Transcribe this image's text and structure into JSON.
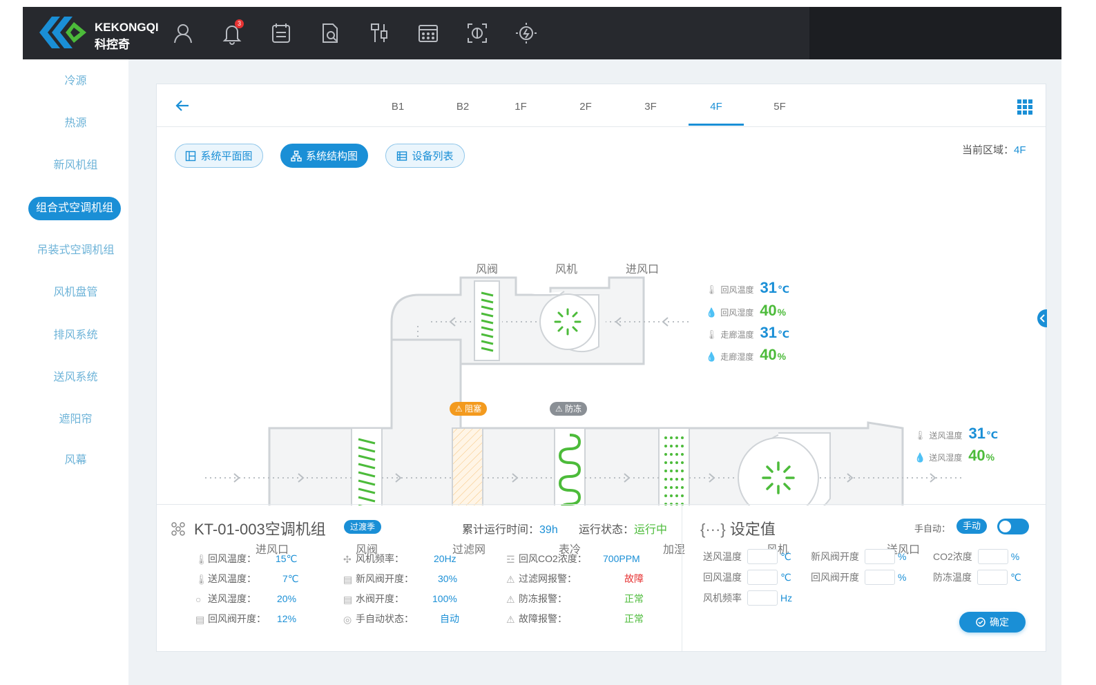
{
  "header": {
    "brand_en": "KEKONGQI",
    "brand_cn": "科控奇",
    "notification_count": "3",
    "icons": [
      "user-icon",
      "bell-icon",
      "calendar-icon",
      "document-search-icon",
      "tools-icon",
      "schedule-icon",
      "scan-icon",
      "energy-icon"
    ]
  },
  "sidebar": {
    "items": [
      "冷源",
      "热源",
      "新风机组",
      "组合式空调机组",
      "吊装式空调机组",
      "风机盘管",
      "排风系统",
      "送风系统",
      "遮阳帘",
      "风幕"
    ],
    "active_index": 3
  },
  "floors": {
    "tabs": [
      "B1",
      "B2",
      "1F",
      "2F",
      "3F",
      "4F",
      "5F"
    ],
    "active": "4F"
  },
  "views": {
    "plan": "系统平面图",
    "structure": "系统结构图",
    "devices": "设备列表"
  },
  "area": {
    "label": "当前区域：",
    "value": "4F"
  },
  "diagram": {
    "top_labels": [
      "风阀",
      "风机",
      "进风口"
    ],
    "bottom_labels": [
      "进风口",
      "风阀",
      "过滤网",
      "表冷",
      "加湿",
      "风机",
      "送风口"
    ],
    "tag_blocked": "阻塞",
    "tag_freeze": "防冻",
    "readings_top": [
      {
        "label": "回风温度",
        "value": "31",
        "unit": "℃",
        "color": "blue"
      },
      {
        "label": "回风湿度",
        "value": "40",
        "unit": "%",
        "color": "green"
      },
      {
        "label": "走廊温度",
        "value": "31",
        "unit": "℃",
        "color": "blue"
      },
      {
        "label": "走廊湿度",
        "value": "40",
        "unit": "%",
        "color": "green"
      }
    ],
    "readings_supply": [
      {
        "label": "送风温度",
        "value": "31",
        "unit": "℃",
        "color": "blue"
      },
      {
        "label": "送风湿度",
        "value": "40",
        "unit": "%",
        "color": "green"
      }
    ]
  },
  "unit": {
    "title": "KT-01-003空调机组",
    "season": "过渡季",
    "runtime_label": "累计运行时间：",
    "runtime_value": "39h",
    "status_label": "运行状态：",
    "status_value": "运行中",
    "col1": [
      {
        "label": "回风温度：",
        "value": "15℃",
        "icon": "thermometer-icon"
      },
      {
        "label": "送风温度：",
        "value": "7℃",
        "icon": "thermometer-icon"
      },
      {
        "label": "送风湿度：",
        "value": "20%",
        "icon": "droplet-icon"
      },
      {
        "label": "回风阀开度：",
        "value": "12%",
        "icon": "valve-icon"
      }
    ],
    "col2": [
      {
        "label": "风机频率：",
        "value": "20Hz",
        "icon": "fan-icon"
      },
      {
        "label": "新风阀开度：",
        "value": "30%",
        "icon": "valve-icon"
      },
      {
        "label": "水阀开度：",
        "value": "100%",
        "icon": "valve-icon"
      },
      {
        "label": "手自动状态：",
        "value": "自动",
        "icon": "mode-icon"
      }
    ],
    "col3": [
      {
        "label": "回风CO2浓度：",
        "value": "700PPM",
        "icon": "co2-icon",
        "color": "blue"
      },
      {
        "label": "过滤网报警：",
        "value": "故障",
        "icon": "warning-icon",
        "color": "red"
      },
      {
        "label": "防冻报警：",
        "value": "正常",
        "icon": "warning-icon",
        "color": "green"
      },
      {
        "label": "故障报警：",
        "value": "正常",
        "icon": "warning-icon",
        "color": "green"
      }
    ]
  },
  "settings": {
    "title": "设定值",
    "mode_label": "手自动：",
    "mode_value": "手动",
    "fields": [
      {
        "label": "送风温度",
        "unit": "℃"
      },
      {
        "label": "新风阀开度",
        "unit": "%"
      },
      {
        "label": "CO2浓度",
        "unit": "%"
      },
      {
        "label": "回风温度",
        "unit": "℃"
      },
      {
        "label": "回风阀开度",
        "unit": "%"
      },
      {
        "label": "防冻温度",
        "unit": "℃"
      },
      {
        "label": "风机频率",
        "unit": "Hz"
      }
    ],
    "confirm": "确定"
  }
}
